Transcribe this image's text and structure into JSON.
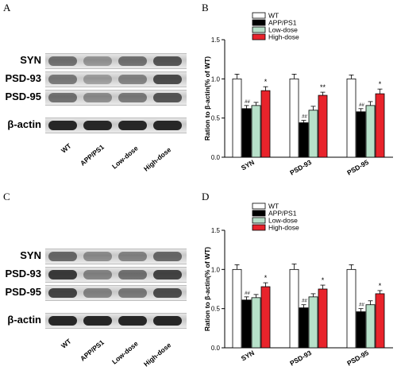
{
  "panels": {
    "A": "A",
    "B": "B",
    "C": "C",
    "D": "D"
  },
  "blot_top": {
    "row_labels": [
      "SYN",
      "PSD-93",
      "PSD-95",
      "β-actin"
    ],
    "lane_labels": [
      "WT",
      "APP/PS1",
      "Low-dose",
      "High-dose"
    ],
    "band_intensity": [
      [
        0.55,
        0.35,
        0.55,
        0.7
      ],
      [
        0.5,
        0.3,
        0.45,
        0.75
      ],
      [
        0.55,
        0.4,
        0.5,
        0.7
      ],
      [
        0.95,
        0.95,
        0.95,
        0.95
      ]
    ]
  },
  "blot_bottom": {
    "row_labels": [
      "SYN",
      "PSD-93",
      "PSD-95",
      "β-actin"
    ],
    "lane_labels": [
      "WT",
      "APP/PS1",
      "Low-dose",
      "High-dose"
    ],
    "band_intensity": [
      [
        0.6,
        0.4,
        0.45,
        0.6
      ],
      [
        0.85,
        0.45,
        0.55,
        0.8
      ],
      [
        0.8,
        0.45,
        0.5,
        0.75
      ],
      [
        0.95,
        0.95,
        0.95,
        0.95
      ]
    ]
  },
  "colors": {
    "WT": "#ffffff",
    "APP/PS1": "#000000",
    "Low-dose": "#b7e0c9",
    "High-dose": "#e8232b"
  },
  "chart_data": [
    {
      "type": "bar",
      "categories": [
        "SYN",
        "PSD-93",
        "PSD-95"
      ],
      "ylabel": "Ration to β-actin(% of WT)",
      "ylim": [
        0,
        1.5
      ],
      "yticks": [
        "0.0",
        "0.5",
        "1.0",
        "1.5"
      ],
      "legend_position": "top-right",
      "series": [
        {
          "name": "WT",
          "values": [
            1.0,
            1.0,
            1.0
          ],
          "errors": [
            0.06,
            0.06,
            0.05
          ]
        },
        {
          "name": "APP/PS1",
          "values": [
            0.62,
            0.44,
            0.58
          ],
          "errors": [
            0.04,
            0.03,
            0.04
          ]
        },
        {
          "name": "Low-dose",
          "values": [
            0.66,
            0.6,
            0.66
          ],
          "errors": [
            0.04,
            0.05,
            0.05
          ]
        },
        {
          "name": "High-dose",
          "values": [
            0.85,
            0.79,
            0.81
          ],
          "errors": [
            0.05,
            0.04,
            0.06
          ]
        }
      ],
      "annotations": [
        [
          "##",
          "##",
          "##"
        ],
        [
          "*",
          "**",
          "*"
        ]
      ]
    },
    {
      "type": "bar",
      "categories": [
        "SYN",
        "PSD-93",
        "PSD-95"
      ],
      "ylabel": "Ration to β-actin(% of WT)",
      "ylim": [
        0,
        1.5
      ],
      "yticks": [
        "0.0",
        "0.5",
        "1.0",
        "1.5"
      ],
      "legend_position": "top-right",
      "series": [
        {
          "name": "WT",
          "values": [
            1.0,
            1.0,
            1.0
          ],
          "errors": [
            0.06,
            0.07,
            0.06
          ]
        },
        {
          "name": "APP/PS1",
          "values": [
            0.61,
            0.51,
            0.46
          ],
          "errors": [
            0.04,
            0.04,
            0.04
          ]
        },
        {
          "name": "Low-dose",
          "values": [
            0.64,
            0.65,
            0.55
          ],
          "errors": [
            0.04,
            0.04,
            0.05
          ]
        },
        {
          "name": "High-dose",
          "values": [
            0.78,
            0.75,
            0.69
          ],
          "errors": [
            0.05,
            0.05,
            0.04
          ]
        }
      ],
      "annotations": [
        [
          "##",
          "##",
          "##"
        ],
        [
          "*",
          "*",
          "*"
        ]
      ]
    }
  ]
}
